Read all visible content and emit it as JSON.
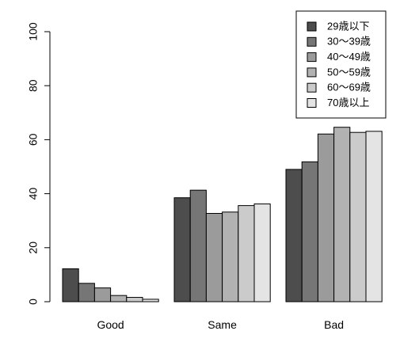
{
  "chart_data": {
    "type": "bar",
    "categories": [
      "Good",
      "Same",
      "Bad"
    ],
    "series": [
      {
        "name": "29歳以下",
        "color": "#4d4d4d",
        "values": [
          12.2,
          38.5,
          49.0
        ]
      },
      {
        "name": "30～39歳",
        "color": "#767676",
        "values": [
          6.8,
          41.3,
          51.8
        ]
      },
      {
        "name": "40～49歳",
        "color": "#9b9b9b",
        "values": [
          5.1,
          32.7,
          62.1
        ]
      },
      {
        "name": "50～59歳",
        "color": "#b2b2b2",
        "values": [
          2.3,
          33.2,
          64.6
        ]
      },
      {
        "name": "60～69歳",
        "color": "#cbcbcb",
        "values": [
          1.6,
          35.6,
          62.7
        ]
      },
      {
        "name": "70歳以上",
        "color": "#e4e4e4",
        "values": [
          0.9,
          36.2,
          63.1
        ]
      }
    ],
    "ylim": [
      0,
      100
    ],
    "yticks": [
      "0",
      "20",
      "40",
      "60",
      "80",
      "100"
    ],
    "title": "",
    "xlabel": "",
    "ylabel": "",
    "legend_position": "top-right",
    "grid": false
  }
}
